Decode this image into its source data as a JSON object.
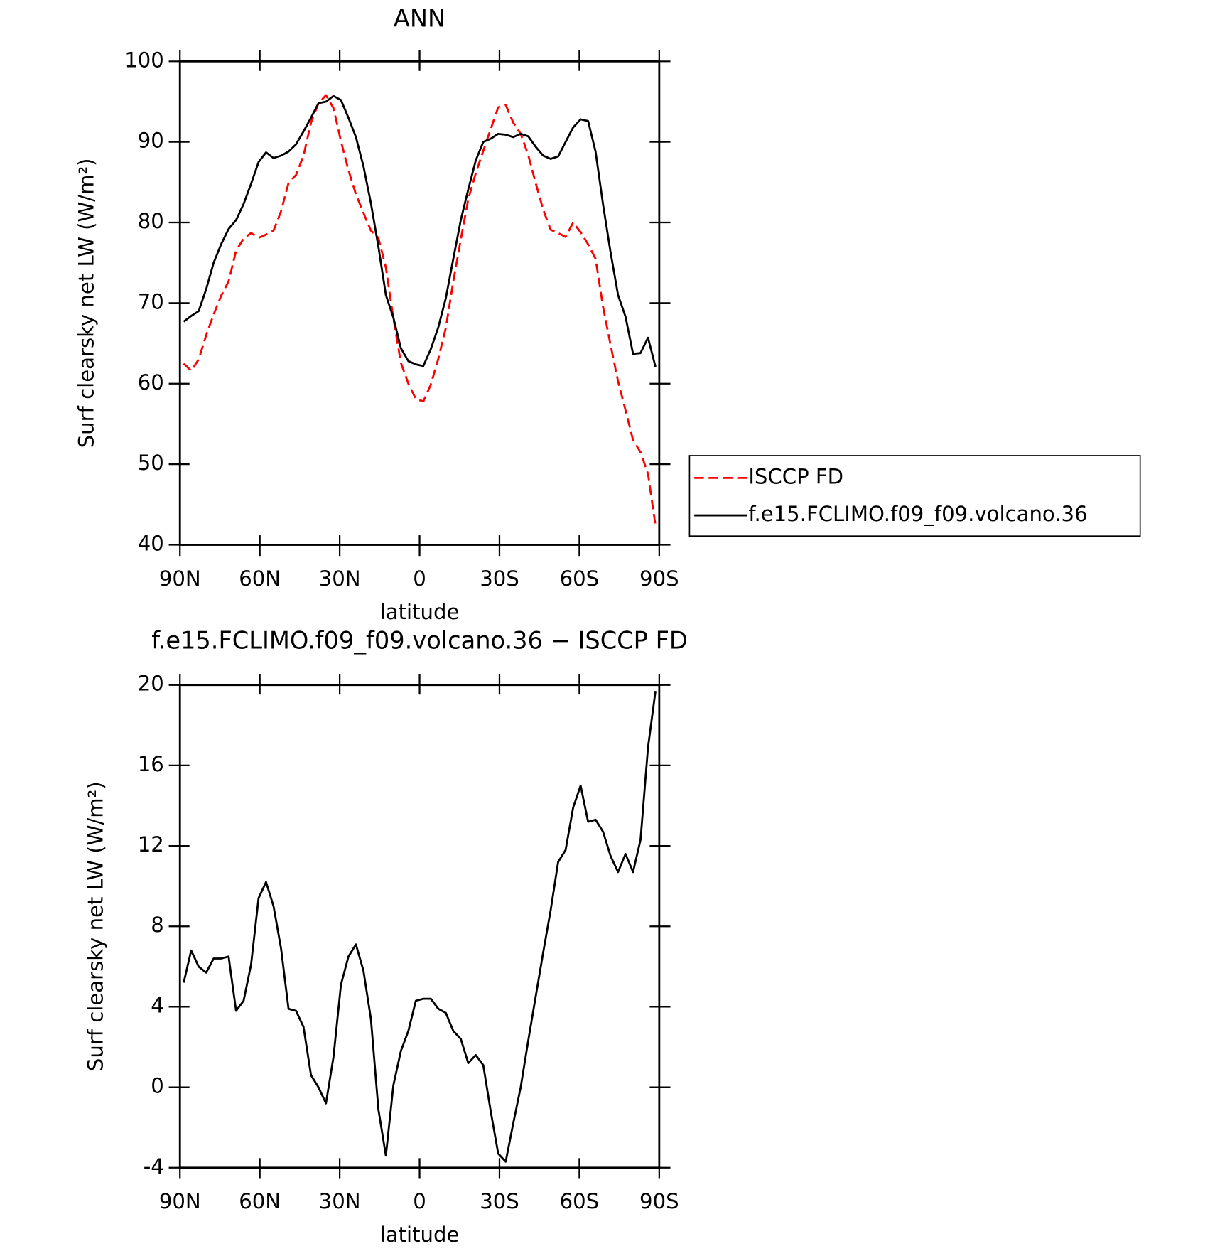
{
  "chart_data": [
    {
      "type": "line",
      "title": "ANN",
      "x_label": "latitude",
      "y_label": "Surf clearsky net LW (W/m²)",
      "x": [
        88.59,
        85.78,
        82.97,
        80.16,
        77.34,
        74.53,
        71.72,
        68.91,
        66.09,
        63.28,
        60.47,
        57.66,
        54.84,
        52.03,
        49.22,
        46.41,
        43.59,
        40.78,
        37.97,
        35.16,
        32.34,
        29.53,
        26.72,
        23.91,
        21.09,
        18.28,
        15.47,
        12.66,
        9.84,
        7.03,
        4.22,
        1.41,
        -1.41,
        -4.22,
        -7.03,
        -9.84,
        -12.66,
        -15.47,
        -18.28,
        -21.09,
        -23.91,
        -26.72,
        -29.53,
        -32.34,
        -35.16,
        -37.97,
        -40.78,
        -43.59,
        -46.41,
        -49.22,
        -52.03,
        -54.84,
        -57.66,
        -60.47,
        -63.28,
        -66.09,
        -68.91,
        -71.72,
        -74.53,
        -77.34,
        -80.16,
        -82.97,
        -85.78,
        -88.59
      ],
      "series": [
        {
          "name": "ISCCP FD",
          "color": "#ff0000",
          "dashed": true,
          "values": [
            62.5,
            61.6,
            63.0,
            66.0,
            68.6,
            70.9,
            72.7,
            76.5,
            78.0,
            78.7,
            78.1,
            78.5,
            79.0,
            81.4,
            84.9,
            85.9,
            88.3,
            92.4,
            94.8,
            95.8,
            94.2,
            90.1,
            86.5,
            83.5,
            81.2,
            79.0,
            78.1,
            74.4,
            68.1,
            62.6,
            60.0,
            58.1,
            57.8,
            59.9,
            63.1,
            66.9,
            72.7,
            77.9,
            82.9,
            86.1,
            88.9,
            91.6,
            94.3,
            94.6,
            92.4,
            91.0,
            88.4,
            84.9,
            81.6,
            79.1,
            78.7,
            78.2,
            80.0,
            78.8,
            77.3,
            75.5,
            69.5,
            64.8,
            60.3,
            56.7,
            53.0,
            51.5,
            48.8,
            42.4
          ]
        },
        {
          "name": "f.e15.FCLIMO.f09_f09.volcano.36",
          "color": "#000000",
          "dashed": false,
          "values": [
            67.7,
            68.4,
            69.0,
            71.7,
            75.0,
            77.3,
            79.2,
            80.3,
            82.3,
            84.8,
            87.5,
            88.7,
            88.0,
            88.3,
            88.8,
            89.7,
            91.3,
            93.0,
            94.8,
            95.0,
            95.7,
            95.2,
            93.0,
            90.6,
            87.0,
            82.4,
            77.0,
            71.0,
            68.2,
            64.4,
            62.8,
            62.4,
            62.2,
            64.3,
            67.0,
            70.6,
            75.5,
            80.3,
            84.1,
            87.7,
            90.0,
            90.4,
            91.0,
            90.9,
            90.6,
            91.0,
            90.7,
            89.4,
            88.3,
            87.9,
            88.2,
            90.0,
            91.8,
            92.8,
            92.6,
            88.8,
            82.2,
            76.3,
            71.0,
            68.3,
            63.7,
            63.8,
            65.7,
            62.1
          ]
        }
      ],
      "xlim": [
        90,
        -90
      ],
      "xticks": [
        {
          "value": 90,
          "label": "90N"
        },
        {
          "value": 60,
          "label": "60N"
        },
        {
          "value": 30,
          "label": "30N"
        },
        0,
        {
          "value": -30,
          "label": "30S"
        },
        {
          "value": -60,
          "label": "60S"
        },
        {
          "value": -90,
          "label": "90S"
        }
      ],
      "ylim": [
        40,
        100
      ],
      "yticks": [
        40,
        50,
        60,
        70,
        80,
        90,
        100
      ],
      "grid": false,
      "legend": "right"
    },
    {
      "type": "line",
      "title": "f.e15.FCLIMO.f09_f09.volcano.36 − ISCCP FD",
      "x_label": "latitude",
      "y_label": "Surf clearsky net LW (W/m²)",
      "x": [
        88.59,
        85.78,
        82.97,
        80.16,
        77.34,
        74.53,
        71.72,
        68.91,
        66.09,
        63.28,
        60.47,
        57.66,
        54.84,
        52.03,
        49.22,
        46.41,
        43.59,
        40.78,
        37.97,
        35.16,
        32.34,
        29.53,
        26.72,
        23.91,
        21.09,
        18.28,
        15.47,
        12.66,
        9.84,
        7.03,
        4.22,
        1.41,
        -1.41,
        -4.22,
        -7.03,
        -9.84,
        -12.66,
        -15.47,
        -18.28,
        -21.09,
        -23.91,
        -26.72,
        -29.53,
        -32.34,
        -35.16,
        -37.97,
        -40.78,
        -43.59,
        -46.41,
        -49.22,
        -52.03,
        -54.84,
        -57.66,
        -60.47,
        -63.28,
        -66.09,
        -68.91,
        -71.72,
        -74.53,
        -77.34,
        -80.16,
        -82.97,
        -85.78,
        -88.59
      ],
      "values": [
        5.2,
        6.8,
        6.0,
        5.7,
        6.4,
        6.4,
        6.5,
        3.8,
        4.3,
        6.1,
        9.4,
        10.2,
        9.0,
        6.9,
        3.9,
        3.8,
        3.0,
        0.6,
        0.0,
        -0.8,
        1.5,
        5.1,
        6.5,
        7.1,
        5.8,
        3.4,
        -1.1,
        -3.4,
        0.1,
        1.8,
        2.8,
        4.3,
        4.4,
        4.4,
        3.9,
        3.7,
        2.8,
        2.4,
        1.2,
        1.6,
        1.1,
        -1.2,
        -3.3,
        -3.7,
        -1.8,
        0.0,
        2.3,
        4.5,
        6.7,
        8.8,
        11.2,
        11.8,
        13.9,
        15.0,
        13.2,
        13.3,
        12.7,
        11.5,
        10.7,
        11.6,
        10.7,
        12.3,
        16.9,
        19.7
      ],
      "color": "#000000",
      "xlim": [
        90,
        -90
      ],
      "xticks": [
        {
          "value": 90,
          "label": "90N"
        },
        {
          "value": 60,
          "label": "60N"
        },
        {
          "value": 30,
          "label": "30N"
        },
        0,
        {
          "value": -30,
          "label": "30S"
        },
        {
          "value": -60,
          "label": "60S"
        },
        {
          "value": -90,
          "label": "90S"
        }
      ],
      "ylim": [
        -4,
        20
      ],
      "yticks": [
        -4,
        0,
        4,
        8,
        12,
        16,
        20
      ],
      "grid": false
    }
  ]
}
